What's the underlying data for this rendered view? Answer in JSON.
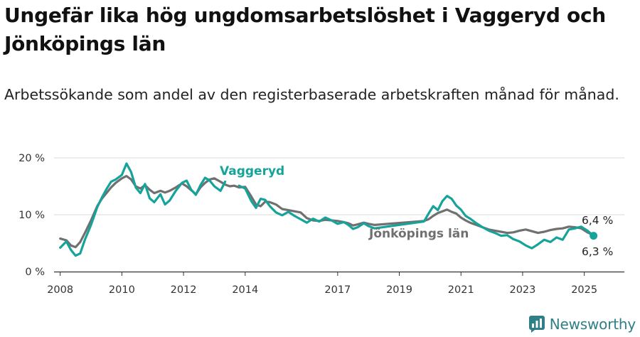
{
  "title": "Ungefär lika hög ungdomsarbetslöshet i Vaggeryd och Jönköpings län",
  "subtitle": "Arbetssökande som andel av den registerbaserade arbetskraften månad för månad.",
  "brand": {
    "name": "Newsworthy",
    "icon": "newsworthy-bar-chart-logo-icon"
  },
  "colors": {
    "vaggeryd": "#16a39a",
    "jonkoping": "#707070",
    "grid": "#d9d9d9",
    "axis": "#333333",
    "brand": "#2e7f86"
  },
  "chart_data": {
    "type": "line",
    "xlabel": "",
    "ylabel": "",
    "ylim": [
      0,
      21
    ],
    "xlim": [
      2007.8,
      2026.3
    ],
    "grid": true,
    "y_ticks": [
      {
        "value": 0,
        "label": "0 %"
      },
      {
        "value": 10,
        "label": "10 %"
      },
      {
        "value": 20,
        "label": "20 %"
      }
    ],
    "x_ticks": [
      {
        "value": 2008,
        "label": "2008"
      },
      {
        "value": 2010,
        "label": "2010"
      },
      {
        "value": 2012,
        "label": "2012"
      },
      {
        "value": 2014,
        "label": "2014"
      },
      {
        "value": 2017,
        "label": "2017"
      },
      {
        "value": 2019,
        "label": "2019"
      },
      {
        "value": 2021,
        "label": "2021"
      },
      {
        "value": 2023,
        "label": "2023"
      },
      {
        "value": 2025,
        "label": "2025"
      }
    ],
    "series": [
      {
        "name": "Vaggeryd",
        "color": "#16a39a",
        "end_label": "6,3 %",
        "x": [
          2008,
          2008.2,
          2008.35,
          2008.5,
          2008.65,
          2008.8,
          2009,
          2009.2,
          2009.35,
          2009.5,
          2009.65,
          2009.8,
          2010,
          2010.15,
          2010.3,
          2010.45,
          2010.6,
          2010.75,
          2010.9,
          2011.05,
          2011.25,
          2011.4,
          2011.55,
          2011.75,
          2011.95,
          2012.1,
          2012.25,
          2012.4,
          2012.55,
          2012.7,
          2012.85,
          2013.0,
          2013.2,
          2013.35,
          2013.5,
          2013.65,
          2013.8,
          2014.0,
          2014.2,
          2014.35,
          2014.5,
          2014.65,
          2014.8,
          2015.0,
          2015.2,
          2015.4,
          2015.6,
          2015.8,
          2016.0,
          2016.2,
          2016.4,
          2016.6,
          2016.8,
          2017.0,
          2017.2,
          2017.35,
          2017.5,
          2017.65,
          2017.85,
          2018.0,
          2018.2,
          2019.8,
          2019.95,
          2020.1,
          2020.25,
          2020.4,
          2020.55,
          2020.7,
          2020.85,
          2021.0,
          2021.15,
          2021.3,
          2021.5,
          2021.7,
          2021.9,
          2022.1,
          2022.3,
          2022.5,
          2022.7,
          2022.9,
          2023.1,
          2023.3,
          2023.5,
          2023.7,
          2023.9,
          2024.1,
          2024.3,
          2024.5,
          2024.7,
          2024.9,
          2025.1,
          2025.3
        ],
        "values": [
          4.2,
          5.3,
          3.8,
          2.8,
          3.2,
          5.6,
          8.2,
          11.3,
          13.0,
          14.5,
          15.8,
          16.2,
          17.0,
          19.0,
          17.5,
          14.8,
          13.8,
          15.4,
          12.9,
          12.2,
          13.6,
          11.8,
          12.5,
          14.2,
          15.6,
          16.0,
          14.4,
          13.5,
          15.2,
          16.5,
          16.0,
          15.0,
          14.2,
          15.8,
          null,
          null,
          15.1,
          14.6,
          12.4,
          11.2,
          12.8,
          12.6,
          11.5,
          10.4,
          9.9,
          10.5,
          9.8,
          9.2,
          8.6,
          9.3,
          8.8,
          9.5,
          9.0,
          8.4,
          8.7,
          8.2,
          7.5,
          7.8,
          8.5,
          8.0,
          7.6,
          8.8,
          10.2,
          11.5,
          10.8,
          12.4,
          13.3,
          12.8,
          11.6,
          10.9,
          9.8,
          9.3,
          8.5,
          7.8,
          7.2,
          6.8,
          6.3,
          6.4,
          5.7,
          5.3,
          4.6,
          4.1,
          4.8,
          5.6,
          5.2,
          6.0,
          5.6,
          7.4,
          7.6,
          7.9,
          7.2,
          6.3
        ]
      },
      {
        "name": "Jönköpings län",
        "color": "#707070",
        "end_label": "6,4 %",
        "x": [
          2008,
          2008.2,
          2008.35,
          2008.5,
          2008.65,
          2008.8,
          2009,
          2009.2,
          2009.35,
          2009.5,
          2009.65,
          2009.8,
          2010,
          2010.15,
          2010.3,
          2010.45,
          2010.6,
          2010.75,
          2010.9,
          2011.05,
          2011.25,
          2011.4,
          2011.55,
          2011.75,
          2011.95,
          2012.1,
          2012.25,
          2012.4,
          2012.55,
          2012.7,
          2012.85,
          2013.0,
          2013.2,
          2013.35,
          2013.5,
          2013.65,
          2013.8,
          2014.0,
          2014.2,
          2014.35,
          2014.5,
          2014.65,
          2014.8,
          2015.0,
          2015.2,
          2015.4,
          2015.6,
          2015.8,
          2016.0,
          2016.2,
          2016.4,
          2016.6,
          2016.8,
          2017.0,
          2017.2,
          2017.35,
          2017.5,
          2017.65,
          2017.85,
          2018.0,
          2018.2,
          2019.8,
          2019.95,
          2020.1,
          2020.25,
          2020.4,
          2020.55,
          2020.7,
          2020.85,
          2021.0,
          2021.15,
          2021.3,
          2021.5,
          2021.7,
          2021.9,
          2022.1,
          2022.3,
          2022.5,
          2022.7,
          2022.9,
          2023.1,
          2023.3,
          2023.5,
          2023.7,
          2023.9,
          2024.1,
          2024.3,
          2024.5,
          2024.7,
          2024.9,
          2025.1,
          2025.3
        ],
        "values": [
          5.8,
          5.5,
          4.6,
          4.3,
          5.2,
          6.8,
          9.0,
          11.5,
          12.8,
          13.8,
          14.8,
          15.6,
          16.4,
          16.8,
          16.2,
          15.0,
          14.6,
          15.2,
          14.4,
          13.8,
          14.2,
          13.9,
          14.2,
          14.8,
          15.5,
          15.0,
          14.3,
          13.6,
          14.8,
          15.6,
          16.2,
          16.4,
          15.8,
          15.3,
          15.0,
          15.1,
          14.8,
          14.9,
          13.2,
          11.8,
          11.5,
          12.3,
          12.2,
          11.8,
          11.0,
          10.8,
          10.6,
          10.4,
          9.4,
          9.0,
          8.9,
          9.1,
          9.0,
          8.9,
          8.7,
          8.5,
          8.1,
          8.3,
          8.6,
          8.4,
          8.2,
          8.9,
          9.2,
          9.8,
          10.3,
          10.6,
          10.9,
          10.5,
          10.2,
          9.5,
          9.0,
          8.6,
          8.2,
          7.8,
          7.4,
          7.2,
          7.0,
          6.8,
          6.9,
          7.2,
          7.4,
          7.1,
          6.8,
          7.0,
          7.3,
          7.5,
          7.6,
          7.9,
          7.8,
          7.6,
          6.9,
          6.4
        ]
      }
    ]
  }
}
